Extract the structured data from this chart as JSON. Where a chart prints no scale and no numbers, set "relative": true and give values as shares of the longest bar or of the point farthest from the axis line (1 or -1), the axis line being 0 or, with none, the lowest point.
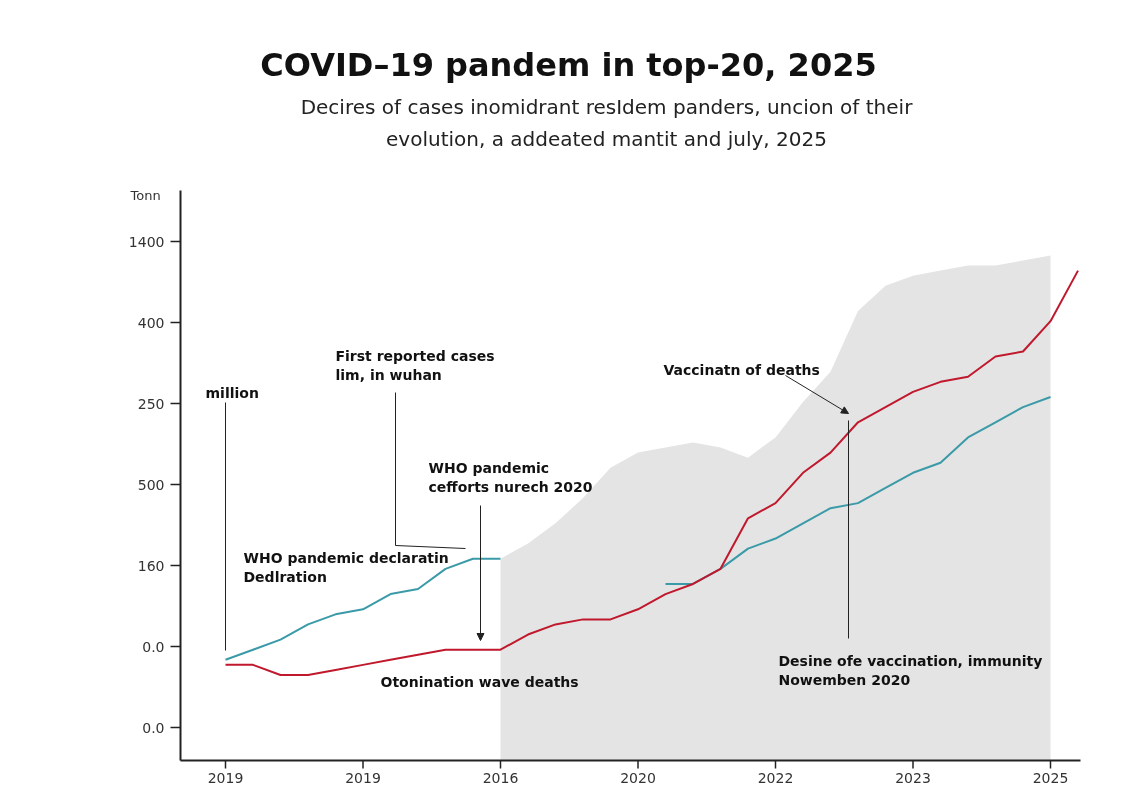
{
  "chart_data": {
    "type": "line",
    "relative": true,
    "title": "COVID–19 pandem in top-20, 2025",
    "subtitle": "Decires of cases inomidrant resIdem panders, uncion of their\nevolution, a addeated mantit and july, 2025",
    "categories": [
      "2019",
      null,
      null,
      null,
      null,
      "2019",
      null,
      null,
      null,
      null,
      "2016",
      null,
      null,
      null,
      null,
      "2020",
      null,
      null,
      null,
      null,
      "2022",
      null,
      null,
      null,
      null,
      "2023",
      null,
      null,
      null,
      null,
      "2025",
      null
    ],
    "series": [
      {
        "type": "area",
        "color": "#e4e4e4",
        "values": [
          null,
          null,
          null,
          null,
          null,
          null,
          null,
          null,
          null,
          null,
          0.4,
          0.43,
          0.47,
          0.52,
          0.58,
          0.61,
          0.62,
          0.63,
          0.62,
          0.6,
          0.64,
          0.71,
          0.77,
          0.89,
          0.94,
          0.96,
          0.97,
          0.98,
          0.98,
          0.99,
          1.0,
          null
        ]
      },
      {
        "color": "#3a9aa8",
        "values": [
          0.2,
          0.22,
          0.24,
          0.27,
          0.29,
          0.3,
          0.33,
          0.34,
          0.38,
          0.4,
          0.4,
          null,
          null,
          null,
          null,
          null,
          0.35,
          0.35,
          0.38,
          0.42,
          0.44,
          0.47,
          0.5,
          0.51,
          0.54,
          0.57,
          0.59,
          0.64,
          0.67,
          0.7,
          0.72,
          null
        ]
      },
      {
        "color": "#c0182c",
        "values": [
          0.19,
          0.19,
          0.17,
          0.17,
          0.18,
          0.19,
          0.2,
          0.21,
          0.22,
          0.22,
          0.22,
          0.25,
          0.27,
          0.28,
          0.28,
          0.3,
          0.33,
          0.35,
          0.38,
          0.48,
          0.51,
          0.57,
          0.61,
          0.67,
          0.7,
          0.73,
          0.75,
          0.76,
          0.8,
          0.81,
          0.87,
          0.97
        ]
      }
    ],
    "annotations": [
      "million",
      "First reported cases\nlim, in wuhan",
      "WHO pandemic\n cefforts nurech 2020",
      "WHO pandemic declaratin\nDedlration",
      "Otonination wave deaths",
      "Vaccinatn of deaths",
      "Desine ofe vaccination, immunity\nNowemben 2020",
      "1400",
      "400",
      "250",
      "500",
      "160",
      "0.0",
      "0.0",
      "Tonn"
    ]
  }
}
